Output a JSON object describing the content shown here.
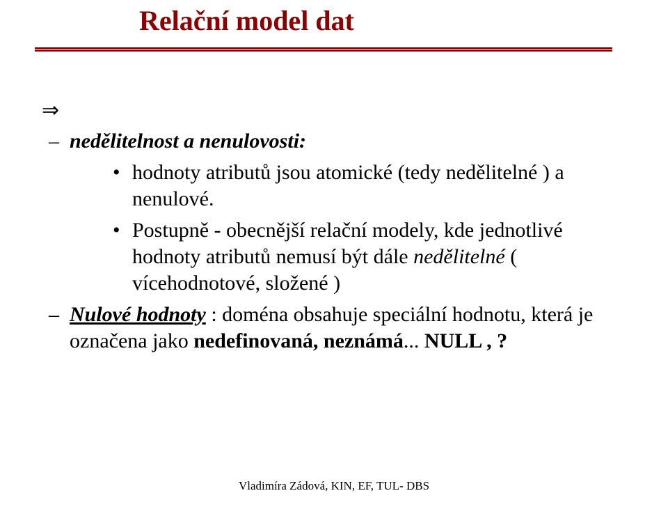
{
  "title": {
    "text": "Relační model dat",
    "color": "#8b0000",
    "fontsize": 40,
    "fontweight": "bold"
  },
  "rule": {
    "color": "#8b0000",
    "top_width": 3,
    "bottom_width": 2
  },
  "body": {
    "fontsize": 30,
    "color": "#000000",
    "arrow_glyph": "⇒",
    "items": [
      {
        "type": "lvl1",
        "dash": "–",
        "runs": [
          {
            "text": "nedělitelnost a nenulovosti:",
            "style": "bi"
          }
        ],
        "sub": [
          {
            "dot": "•",
            "runs": [
              {
                "text": " hodnoty atributů jsou atomické (tedy nedělitelné ) a nenulové.",
                "style": "plain"
              }
            ]
          },
          {
            "dot": "•",
            "runs": [
              {
                "text": "Postupně - obecnější relační modely, kde jednotlivé hodnoty atributů nemusí být dále ",
                "style": "plain"
              },
              {
                "text": "nedělitelné",
                "style": "ital"
              },
              {
                "text": " ( vícehodnotové, složené )",
                "style": "plain"
              }
            ]
          }
        ]
      },
      {
        "type": "lvl1",
        "dash": "–",
        "runs": [
          {
            "text": "Nulové hodnoty",
            "style": "biun"
          },
          {
            "text": " : doména obsahuje speciální hodnotu, která je označena jako",
            "style": "plain"
          },
          {
            "text": " nedefinovaná, neznámá",
            "style": "bold"
          },
          {
            "text": "...",
            "style": "plain"
          },
          {
            "text": " NULL , ?",
            "style": "bold"
          }
        ]
      }
    ]
  },
  "footer": {
    "text": "Vladimíra Zádová, KIN, EF, TUL- DBS",
    "fontsize": 17
  }
}
